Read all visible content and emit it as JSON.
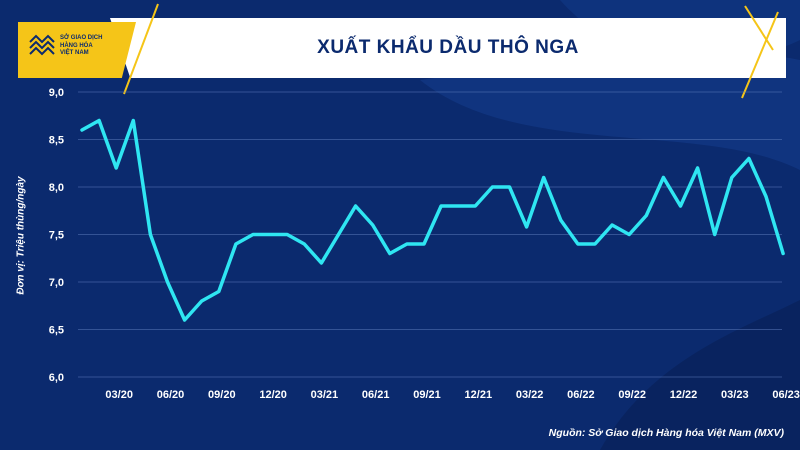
{
  "logo": {
    "lines": [
      "SỞ GIAO DỊCH",
      "HÀNG HÓA",
      "VIỆT NAM"
    ]
  },
  "chart_data": {
    "type": "line",
    "title": "XUẤT KHẨU DẦU THÔ NGA",
    "ylabel": "Đơn vị: Triệu thùng/ngày",
    "xlabel": "",
    "ylim": [
      6.0,
      9.0
    ],
    "yticks": [
      "6,0",
      "6,5",
      "7,0",
      "7,5",
      "8,0",
      "8,5",
      "9,0"
    ],
    "ytick_values": [
      6.0,
      6.5,
      7.0,
      7.5,
      8.0,
      8.5,
      9.0
    ],
    "xtick_labels": [
      "03/20",
      "06/20",
      "09/20",
      "12/20",
      "03/21",
      "06/21",
      "09/21",
      "12/21",
      "03/22",
      "06/22",
      "09/22",
      "12/22",
      "03/23",
      "06/23"
    ],
    "grid": true,
    "line_color": "#2fe6f2",
    "values": [
      8.6,
      8.7,
      8.2,
      8.7,
      7.5,
      7.0,
      6.6,
      6.8,
      6.9,
      7.4,
      7.5,
      7.5,
      7.5,
      7.4,
      7.2,
      7.5,
      7.8,
      7.6,
      7.3,
      7.4,
      7.4,
      7.8,
      7.8,
      7.8,
      8.0,
      8.0,
      7.58,
      8.1,
      7.65,
      7.4,
      7.4,
      7.6,
      7.5,
      7.7,
      8.1,
      7.8,
      8.2,
      7.5,
      8.1,
      8.3,
      7.9,
      7.3
    ]
  },
  "source": "Nguồn: Sở Giao dịch Hàng hóa Việt Nam (MXV)",
  "colors": {
    "background": "#0b2a6e",
    "accent": "#f5c518",
    "line": "#2fe6f2"
  }
}
